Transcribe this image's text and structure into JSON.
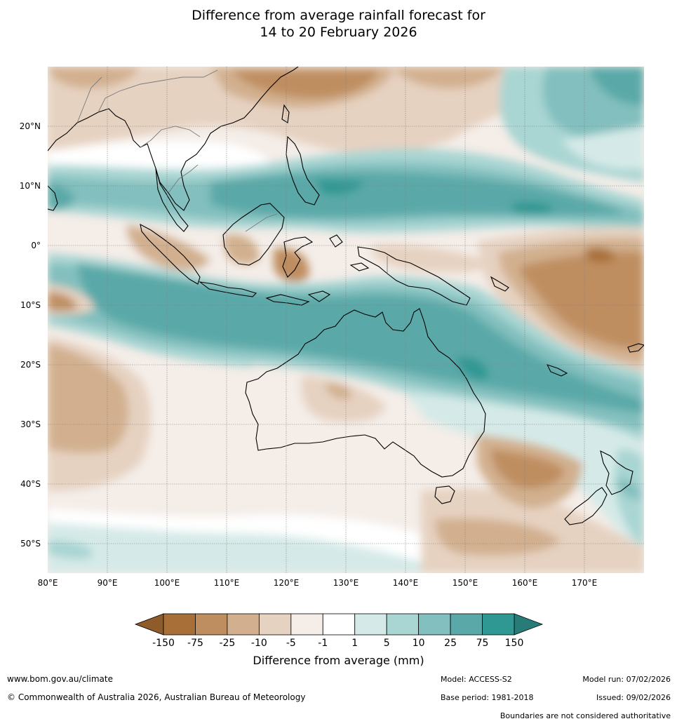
{
  "title": {
    "line1": "Difference from average rainfall forecast for",
    "line2": "14 to 20 February 2026"
  },
  "map": {
    "lon_range": [
      80,
      180
    ],
    "lat_range": [
      -55,
      30
    ],
    "lon_ticks": [
      "80°E",
      "90°E",
      "100°E",
      "110°E",
      "120°E",
      "130°E",
      "140°E",
      "150°E",
      "160°E",
      "170°E"
    ],
    "lat_ticks": [
      "20°N",
      "10°N",
      "0°",
      "10°S",
      "20°S",
      "30°S",
      "40°S",
      "50°S"
    ],
    "grid": true
  },
  "colorbar": {
    "labels": [
      "-150",
      "-75",
      "-25",
      "-10",
      "-5",
      "-1",
      "1",
      "5",
      "10",
      "25",
      "75",
      "150"
    ],
    "colors": [
      "#a86f39",
      "#bf8e60",
      "#d2b08f",
      "#e6d2c1",
      "#f4ede8",
      "#ffffff",
      "#d5eae8",
      "#a9d5d3",
      "#82bfbe",
      "#5aa9a8",
      "#2f9893"
    ],
    "extend_low_color": "#8f5b2b",
    "extend_high_color": "#277c78",
    "title": "Difference from average (mm)"
  },
  "footer": {
    "website": "www.bom.gov.au/climate",
    "copyright": "© Commonwealth of Australia 2026, Australian Bureau of Meteorology",
    "model": "Model: ACCESS-S2",
    "base_period": "Base period: 1981-2018",
    "model_run": "Model run: 07/02/2026",
    "issued": "Issued: 09/02/2026",
    "disclaimer": "Boundaries are not considered authoritative"
  }
}
